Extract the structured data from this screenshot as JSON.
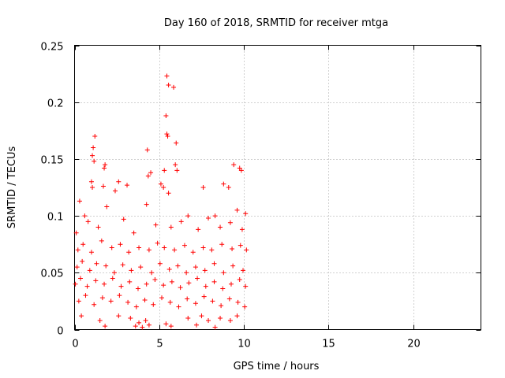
{
  "chart_data": {
    "type": "scatter",
    "title": "Day 160 of 2018, SRMTID for receiver mtga",
    "xlabel": "GPS time / hours",
    "ylabel": "SRMTID / TECUs",
    "xlim": [
      0,
      24
    ],
    "ylim": [
      0,
      0.25
    ],
    "xticks": [
      0,
      5,
      10,
      15,
      20
    ],
    "yticks": [
      0,
      0.05,
      0.1,
      0.15,
      0.2,
      0.25
    ],
    "x_tick_labels": [
      "0",
      "5",
      "10",
      "15",
      "20"
    ],
    "y_tick_labels": [
      "0",
      "0.05",
      "0.1",
      "0.15",
      "0.2",
      "0.25"
    ],
    "grid": true,
    "marker": "+",
    "series": [
      {
        "name": "SRMTID",
        "color": "#ff0000",
        "x_range": [
          0.0,
          10.2
        ],
        "points": [
          [
            5.45,
            0.223
          ],
          [
            5.55,
            0.215
          ],
          [
            5.85,
            0.213
          ],
          [
            5.4,
            0.188
          ],
          [
            5.5,
            0.17
          ],
          [
            5.45,
            0.172
          ],
          [
            6.0,
            0.164
          ],
          [
            4.3,
            0.158
          ],
          [
            1.2,
            0.17
          ],
          [
            1.1,
            0.16
          ],
          [
            1.05,
            0.153
          ],
          [
            1.15,
            0.148
          ],
          [
            1.8,
            0.145
          ],
          [
            1.75,
            0.142
          ],
          [
            5.3,
            0.14
          ],
          [
            5.95,
            0.145
          ],
          [
            6.05,
            0.14
          ],
          [
            9.4,
            0.145
          ],
          [
            9.75,
            0.142
          ],
          [
            9.85,
            0.14
          ],
          [
            4.5,
            0.138
          ],
          [
            4.35,
            0.135
          ],
          [
            2.6,
            0.13
          ],
          [
            1.0,
            0.13
          ],
          [
            1.05,
            0.125
          ],
          [
            5.1,
            0.128
          ],
          [
            5.25,
            0.125
          ],
          [
            9.1,
            0.125
          ],
          [
            3.1,
            0.127
          ],
          [
            1.7,
            0.126
          ],
          [
            5.55,
            0.12
          ],
          [
            7.6,
            0.125
          ],
          [
            8.8,
            0.128
          ],
          [
            0.3,
            0.113
          ],
          [
            2.4,
            0.122
          ],
          [
            0.6,
            0.1
          ],
          [
            1.9,
            0.108
          ],
          [
            4.25,
            0.11
          ],
          [
            6.7,
            0.1
          ],
          [
            8.3,
            0.1
          ],
          [
            9.6,
            0.105
          ],
          [
            10.1,
            0.102
          ],
          [
            0.1,
            0.085
          ],
          [
            0.8,
            0.095
          ],
          [
            1.4,
            0.09
          ],
          [
            2.9,
            0.097
          ],
          [
            3.5,
            0.085
          ],
          [
            4.8,
            0.092
          ],
          [
            5.7,
            0.09
          ],
          [
            6.3,
            0.095
          ],
          [
            7.3,
            0.088
          ],
          [
            7.9,
            0.098
          ],
          [
            8.6,
            0.09
          ],
          [
            9.2,
            0.094
          ],
          [
            9.9,
            0.088
          ],
          [
            0.2,
            0.07
          ],
          [
            0.5,
            0.075
          ],
          [
            1.0,
            0.068
          ],
          [
            1.6,
            0.078
          ],
          [
            2.2,
            0.072
          ],
          [
            2.7,
            0.075
          ],
          [
            3.2,
            0.068
          ],
          [
            3.8,
            0.072
          ],
          [
            4.4,
            0.07
          ],
          [
            4.9,
            0.076
          ],
          [
            5.3,
            0.072
          ],
          [
            5.9,
            0.07
          ],
          [
            6.5,
            0.074
          ],
          [
            7.0,
            0.068
          ],
          [
            7.6,
            0.072
          ],
          [
            8.1,
            0.07
          ],
          [
            8.7,
            0.075
          ],
          [
            9.3,
            0.071
          ],
          [
            9.8,
            0.074
          ],
          [
            10.15,
            0.07
          ],
          [
            0.15,
            0.055
          ],
          [
            0.45,
            0.06
          ],
          [
            0.9,
            0.052
          ],
          [
            1.3,
            0.058
          ],
          [
            1.85,
            0.056
          ],
          [
            2.35,
            0.05
          ],
          [
            2.85,
            0.057
          ],
          [
            3.35,
            0.052
          ],
          [
            3.9,
            0.055
          ],
          [
            4.55,
            0.05
          ],
          [
            5.05,
            0.058
          ],
          [
            5.6,
            0.053
          ],
          [
            6.1,
            0.056
          ],
          [
            6.6,
            0.05
          ],
          [
            7.15,
            0.055
          ],
          [
            7.7,
            0.052
          ],
          [
            8.25,
            0.058
          ],
          [
            8.8,
            0.05
          ],
          [
            9.35,
            0.056
          ],
          [
            9.95,
            0.052
          ],
          [
            0.05,
            0.04
          ],
          [
            0.35,
            0.045
          ],
          [
            0.75,
            0.038
          ],
          [
            1.25,
            0.043
          ],
          [
            1.75,
            0.04
          ],
          [
            2.25,
            0.045
          ],
          [
            2.75,
            0.038
          ],
          [
            3.25,
            0.042
          ],
          [
            3.75,
            0.036
          ],
          [
            4.25,
            0.04
          ],
          [
            4.75,
            0.044
          ],
          [
            5.25,
            0.039
          ],
          [
            5.75,
            0.042
          ],
          [
            6.25,
            0.037
          ],
          [
            6.75,
            0.041
          ],
          [
            7.25,
            0.045
          ],
          [
            7.75,
            0.038
          ],
          [
            8.25,
            0.042
          ],
          [
            8.75,
            0.036
          ],
          [
            9.25,
            0.04
          ],
          [
            9.75,
            0.044
          ],
          [
            10.1,
            0.038
          ],
          [
            0.25,
            0.025
          ],
          [
            0.65,
            0.03
          ],
          [
            1.15,
            0.022
          ],
          [
            1.65,
            0.028
          ],
          [
            2.15,
            0.025
          ],
          [
            2.65,
            0.03
          ],
          [
            3.15,
            0.024
          ],
          [
            3.65,
            0.02
          ],
          [
            4.15,
            0.026
          ],
          [
            4.65,
            0.022
          ],
          [
            5.15,
            0.028
          ],
          [
            5.65,
            0.024
          ],
          [
            6.15,
            0.02
          ],
          [
            6.65,
            0.027
          ],
          [
            7.15,
            0.023
          ],
          [
            7.65,
            0.029
          ],
          [
            8.15,
            0.025
          ],
          [
            8.65,
            0.021
          ],
          [
            9.15,
            0.027
          ],
          [
            9.65,
            0.024
          ],
          [
            10.05,
            0.02
          ],
          [
            0.4,
            0.012
          ],
          [
            1.5,
            0.008
          ],
          [
            1.8,
            0.003
          ],
          [
            2.6,
            0.012
          ],
          [
            3.3,
            0.01
          ],
          [
            3.6,
            0.003
          ],
          [
            3.8,
            0.006
          ],
          [
            4.0,
            0.002
          ],
          [
            4.2,
            0.008
          ],
          [
            4.4,
            0.004
          ],
          [
            5.4,
            0.005
          ],
          [
            5.7,
            0.003
          ],
          [
            6.7,
            0.01
          ],
          [
            7.2,
            0.004
          ],
          [
            7.5,
            0.012
          ],
          [
            7.9,
            0.008
          ],
          [
            8.3,
            0.002
          ],
          [
            8.6,
            0.01
          ],
          [
            9.2,
            0.008
          ],
          [
            9.6,
            0.012
          ]
        ]
      }
    ]
  }
}
